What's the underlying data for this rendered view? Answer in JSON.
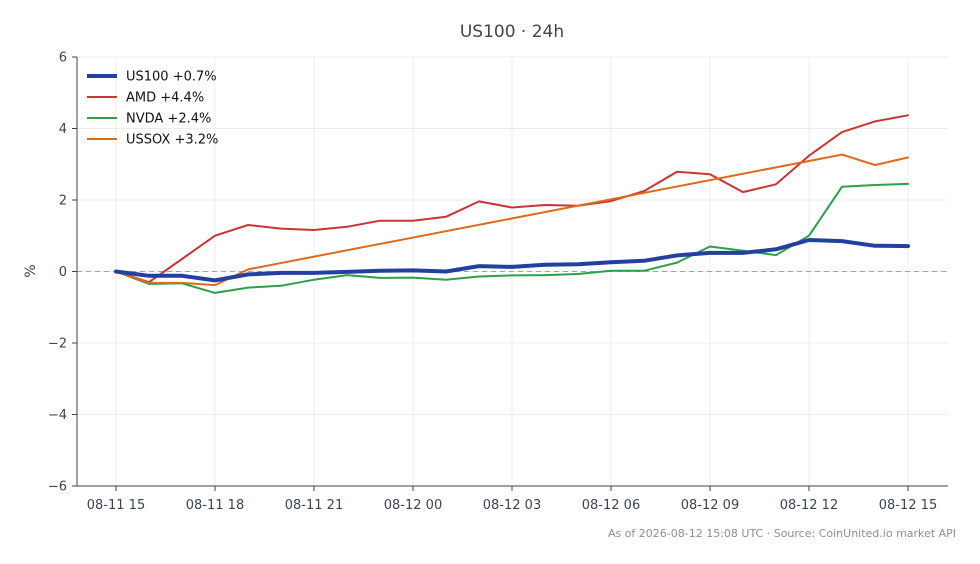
{
  "chart_data": {
    "type": "line",
    "title": "US100 · 24h",
    "xlabel": "",
    "ylabel": "%",
    "ylim": [
      -6,
      6
    ],
    "yticks": [
      6,
      4,
      2,
      0,
      -2,
      -4,
      -6
    ],
    "ytick_labels": [
      "6",
      "4",
      "2",
      "0",
      "−2",
      "−4",
      "−6"
    ],
    "x": [
      "08-11 15",
      "08-11 16",
      "08-11 17",
      "08-11 18",
      "08-11 19",
      "08-11 20",
      "08-11 21",
      "08-11 22",
      "08-11 23",
      "08-12 00",
      "08-12 01",
      "08-12 02",
      "08-12 03",
      "08-12 04",
      "08-12 05",
      "08-12 06",
      "08-12 07",
      "08-12 08",
      "08-12 09",
      "08-12 10",
      "08-12 11",
      "08-12 12",
      "08-12 13",
      "08-12 14",
      "08-12 15"
    ],
    "xticks": [
      "08-11 15",
      "08-11 18",
      "08-11 21",
      "08-12 00",
      "08-12 03",
      "08-12 06",
      "08-12 09",
      "08-12 12",
      "08-12 15"
    ],
    "grid": true,
    "legend_position": "top-left",
    "reference_line": 0,
    "series": [
      {
        "name": "US100 +0.7%",
        "color": "#2340a0",
        "width": 4,
        "values": [
          0.0,
          -0.12,
          -0.12,
          -0.25,
          -0.08,
          -0.04,
          -0.04,
          -0.01,
          0.02,
          0.03,
          0.0,
          0.15,
          0.13,
          0.19,
          0.2,
          0.26,
          0.3,
          0.45,
          0.52,
          0.52,
          0.62,
          0.88,
          0.85,
          0.72,
          0.71
        ]
      },
      {
        "name": "AMD +4.4%",
        "color": "#cc3333",
        "width": 2,
        "values": [
          0.0,
          -0.3,
          0.35,
          1.0,
          1.3,
          1.2,
          1.16,
          1.25,
          1.42,
          1.42,
          1.53,
          1.96,
          1.79,
          1.86,
          1.84,
          1.97,
          2.25,
          2.79,
          2.72,
          2.22,
          2.44,
          3.24,
          3.9,
          4.2,
          4.37
        ]
      },
      {
        "name": "NVDA +2.4%",
        "color": "#2ca048",
        "width": 2,
        "values": [
          0.0,
          -0.35,
          -0.33,
          -0.6,
          -0.45,
          -0.4,
          -0.23,
          -0.1,
          -0.18,
          -0.17,
          -0.23,
          -0.14,
          -0.11,
          -0.1,
          -0.07,
          0.02,
          0.02,
          0.25,
          0.7,
          0.58,
          0.46,
          1.0,
          2.37,
          2.42,
          2.45
        ]
      },
      {
        "name": "USSOX +3.2%",
        "color": "#e0691a",
        "width": 2,
        "values": [
          0.0,
          -0.32,
          -0.32,
          -0.38,
          0.06,
          null,
          null,
          null,
          null,
          null,
          null,
          null,
          null,
          null,
          null,
          2.02,
          null,
          null,
          null,
          null,
          null,
          null,
          3.27,
          2.98,
          3.19
        ]
      }
    ]
  },
  "footer": "As of 2026-08-12 15:08 UTC · Source: CoinUnited.io market API"
}
